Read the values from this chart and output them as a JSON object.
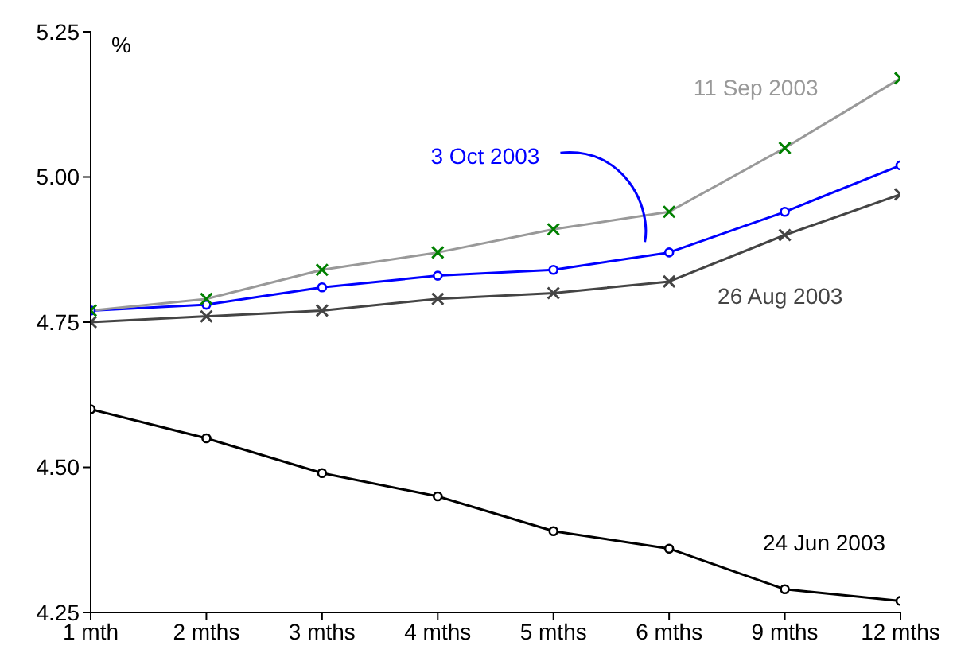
{
  "chart_data": {
    "type": "line",
    "ylabel": "%",
    "categories": [
      "1 mth",
      "2 mths",
      "3 mths",
      "4 mths",
      "5 mths",
      "6 mths",
      "9 mths",
      "12 mths"
    ],
    "series": [
      {
        "name": "11 Sep 2003",
        "color": "#999999",
        "colors": [
          "#008000",
          "#008000",
          "#008000",
          "#008000",
          "#008000",
          "#008000",
          "#008000",
          "#008000"
        ],
        "marker": "cross",
        "values": [
          4.77,
          4.79,
          4.84,
          4.87,
          4.91,
          4.94,
          5.05,
          5.17
        ]
      },
      {
        "name": "3 Oct 2003",
        "color": "#0000ff",
        "marker": "circle",
        "values": [
          4.77,
          4.78,
          4.81,
          4.83,
          4.84,
          4.87,
          4.94,
          5.02
        ]
      },
      {
        "name": "26 Aug 2003",
        "color": "#444444",
        "marker": "cross",
        "values": [
          4.75,
          4.76,
          4.77,
          4.79,
          4.8,
          4.82,
          4.9,
          4.97
        ]
      },
      {
        "name": "24 Jun 2003",
        "color": "#000000",
        "marker": "circle",
        "values": [
          4.6,
          4.55,
          4.49,
          4.45,
          4.39,
          4.36,
          4.29,
          4.27
        ]
      }
    ],
    "ylim": [
      4.25,
      5.25
    ],
    "yticks": [
      {
        "value": 4.25,
        "label": "4.25"
      },
      {
        "value": 4.5,
        "label": "4.50"
      },
      {
        "value": 4.75,
        "label": "4.75"
      },
      {
        "value": 5,
        "label": "5.00"
      },
      {
        "value": 5.25,
        "label": "5.25"
      }
    ],
    "grid": false,
    "legend": false
  }
}
